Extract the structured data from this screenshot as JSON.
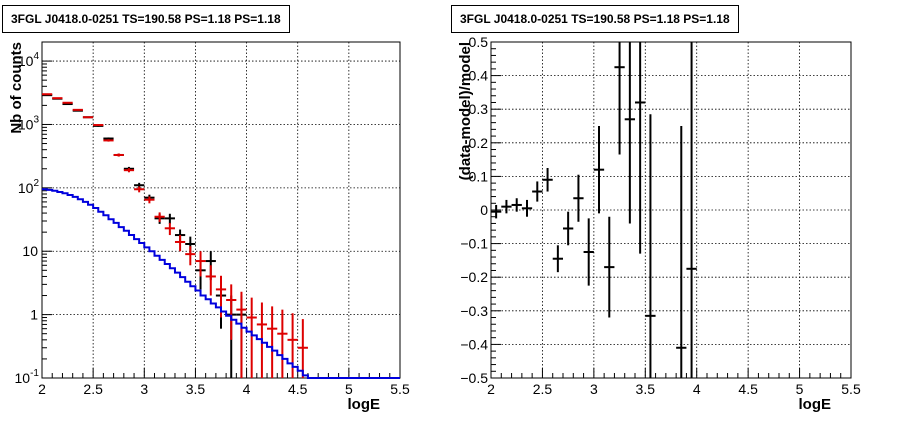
{
  "chart_data": [
    {
      "type": "line",
      "title": "3FGL J0418.0-0251 TS=190.58 PS=1.18 PS=1.18",
      "xlabel": "logE",
      "ylabel": "Nb of counts",
      "xlim": [
        2,
        5.5
      ],
      "ylim": [
        0.1,
        20000
      ],
      "yscale": "log",
      "grid": true,
      "x_ticks": [
        2,
        2.5,
        3,
        3.5,
        4,
        4.5,
        5,
        5.5
      ],
      "x_tick_labels": [
        "2",
        "2.5",
        "3",
        "3.5",
        "4",
        "4.5",
        "5",
        "5.5"
      ],
      "y_ticks": [
        0.1,
        1,
        10,
        100,
        1000,
        10000
      ],
      "y_tick_labels": [
        "10^-1",
        "1",
        "10",
        "10^2",
        "10^3",
        "10^4"
      ],
      "series": [
        {
          "kind": "data",
          "color": "#000000",
          "x": [
            2.05,
            2.15,
            2.25,
            2.35,
            2.45,
            2.55,
            2.65,
            2.75,
            2.85,
            2.95,
            3.05,
            3.15,
            3.25,
            3.35,
            3.45,
            3.55,
            3.65,
            3.75,
            3.85,
            3.95
          ],
          "y": [
            2900,
            2550,
            2100,
            1650,
            1300,
            950,
            600,
            330,
            200,
            110,
            70,
            33,
            33,
            18,
            13,
            5,
            7,
            2,
            1,
            1
          ],
          "yerr_low": [
            54,
            50,
            46,
            41,
            36,
            31,
            24,
            18,
            14,
            10,
            8,
            6,
            6,
            4,
            4,
            2.5,
            3.5,
            1.4,
            1,
            1
          ],
          "yerr_high": [
            54,
            50,
            46,
            41,
            36,
            31,
            24,
            18,
            14,
            10,
            8,
            6,
            6,
            4,
            4,
            2,
            3,
            1.4,
            1,
            1
          ]
        },
        {
          "kind": "model",
          "color": "#dd0000",
          "x": [
            2.05,
            2.15,
            2.25,
            2.35,
            2.45,
            2.55,
            2.65,
            2.75,
            2.85,
            2.95,
            3.05,
            3.15,
            3.25,
            3.35,
            3.45,
            3.55,
            3.65,
            3.75,
            3.85,
            3.95,
            4.05,
            4.15,
            4.25,
            4.35,
            4.45,
            4.55
          ],
          "y": [
            3000,
            2600,
            2200,
            1700,
            1300,
            980,
            560,
            330,
            190,
            95,
            65,
            35,
            23,
            14,
            9,
            7,
            4,
            2.5,
            1.7,
            1.2,
            0.9,
            0.7,
            0.6,
            0.5,
            0.4,
            0.3
          ],
          "yerr_low": [
            55,
            51,
            47,
            41,
            36,
            31,
            24,
            18,
            14,
            10,
            8,
            6,
            5,
            4,
            3,
            3,
            2,
            1.6,
            1.3,
            1.1,
            0.9,
            0.7,
            0.6,
            0.5,
            0.4,
            0.3
          ],
          "yerr_high": [
            55,
            51,
            47,
            41,
            36,
            31,
            24,
            18,
            14,
            10,
            8,
            6,
            5,
            4,
            3,
            3,
            2,
            1.6,
            1.3,
            1.1,
            0.95,
            0.85,
            0.75,
            0.7,
            0.65,
            0.55
          ]
        },
        {
          "kind": "step",
          "color": "#0000dd",
          "edges": [
            2,
            2.05,
            2.1,
            2.15,
            2.2,
            2.25,
            2.3,
            2.35,
            2.4,
            2.45,
            2.5,
            2.55,
            2.6,
            2.65,
            2.7,
            2.75,
            2.8,
            2.85,
            2.9,
            2.95,
            3,
            3.05,
            3.1,
            3.15,
            3.2,
            3.25,
            3.3,
            3.35,
            3.4,
            3.45,
            3.5,
            3.55,
            3.6,
            3.65,
            3.7,
            3.75,
            3.8,
            3.85,
            3.9,
            3.95,
            4,
            4.05,
            4.1,
            4.15,
            4.2,
            4.25,
            4.3,
            4.35,
            4.4,
            4.45,
            4.5,
            4.55,
            4.6,
            5.5
          ],
          "values": [
            95,
            93,
            90,
            86,
            82,
            77,
            72,
            66,
            60,
            54,
            48,
            42,
            37,
            32,
            28,
            24,
            21,
            18,
            15.5,
            13.5,
            11.5,
            10,
            8.5,
            7.3,
            6.3,
            5.4,
            4.6,
            3.9,
            3.3,
            2.8,
            2.4,
            2.0,
            1.75,
            1.5,
            1.3,
            1.12,
            0.96,
            0.83,
            0.72,
            0.62,
            0.54,
            0.47,
            0.41,
            0.36,
            0.31,
            0.27,
            0.23,
            0.2,
            0.17,
            0.15,
            0.13,
            0.11,
            0.1
          ]
        }
      ]
    },
    {
      "type": "scatter",
      "title": "3FGL J0418.0-0251 TS=190.58 PS=1.18 PS=1.18",
      "xlabel": "logE",
      "ylabel": "(data-model)/model",
      "xlim": [
        2,
        5.5
      ],
      "ylim": [
        -0.5,
        0.5
      ],
      "grid": true,
      "x_ticks": [
        2,
        2.5,
        3,
        3.5,
        4,
        4.5,
        5,
        5.5
      ],
      "x_tick_labels": [
        "2",
        "2.5",
        "3",
        "3.5",
        "4",
        "4.5",
        "5",
        "5.5"
      ],
      "y_ticks": [
        -0.5,
        -0.4,
        -0.3,
        -0.2,
        -0.1,
        0,
        0.1,
        0.2,
        0.3,
        0.4,
        0.5
      ],
      "y_tick_labels": [
        "−0.5",
        "−0.4",
        "−0.3",
        "−0.2",
        "−0.1",
        "0",
        "0.1",
        "0.2",
        "0.3",
        "0.4",
        "0.5"
      ],
      "series": [
        {
          "kind": "residuals",
          "color": "#000000",
          "x": [
            2.05,
            2.15,
            2.25,
            2.35,
            2.45,
            2.55,
            2.65,
            2.75,
            2.85,
            2.95,
            3.05,
            3.15,
            3.25,
            3.35,
            3.45,
            3.55,
            3.85,
            3.95
          ],
          "y": [
            -0.005,
            0.01,
            0.015,
            0.005,
            0.055,
            0.09,
            -0.145,
            -0.055,
            0.035,
            -0.125,
            0.12,
            -0.17,
            0.425,
            0.27,
            0.32,
            -0.315,
            -0.41,
            -0.175
          ],
          "yerr_low": [
            0.02,
            0.02,
            0.02,
            0.025,
            0.03,
            0.035,
            0.04,
            0.05,
            0.07,
            0.1,
            0.13,
            0.15,
            0.26,
            0.31,
            0.45,
            0.6,
            0.59,
            1.0
          ],
          "yerr_high": [
            0.02,
            0.02,
            0.02,
            0.025,
            0.03,
            0.035,
            0.04,
            0.05,
            0.07,
            0.1,
            0.13,
            0.15,
            0.26,
            0.31,
            0.45,
            0.6,
            0.66,
            1.0
          ]
        }
      ]
    }
  ]
}
